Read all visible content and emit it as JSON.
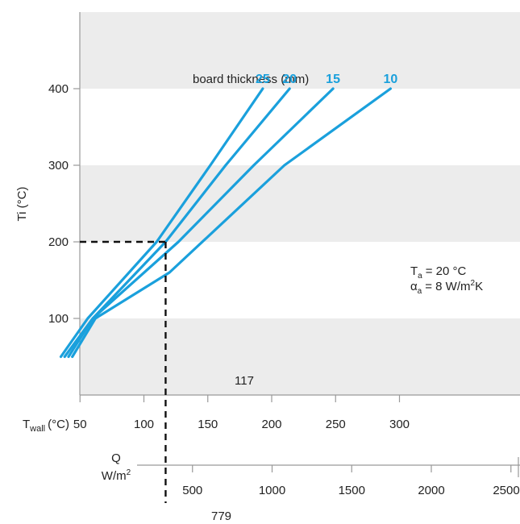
{
  "chart_data": {
    "type": "line",
    "y_axis": {
      "label": "Ti (°C)",
      "ticks": [
        100,
        200,
        300,
        400
      ],
      "range": [
        0,
        500
      ]
    },
    "x_axis": {
      "label_main": "T",
      "label_sub": "wall",
      "label_unit": "(°C)",
      "ticks": [
        50,
        100,
        150,
        200,
        250,
        300
      ],
      "range": [
        0,
        345
      ]
    },
    "secondary_axis": {
      "label_line1": "Q",
      "label_line2_main": "W/m",
      "label_line2_sup": "2",
      "ticks": [
        500,
        1000,
        1500,
        2000,
        2500
      ],
      "range": [
        0,
        2580
      ]
    },
    "legend_title": "board thickness (mm)",
    "series": [
      {
        "name": "25",
        "color": "#1aa0dc",
        "points": [
          [
            35,
            50
          ],
          [
            56,
            100
          ],
          [
            110,
            200
          ],
          [
            152,
            300
          ],
          [
            193,
            400
          ]
        ]
      },
      {
        "name": "20",
        "color": "#1aa0dc",
        "points": [
          [
            38,
            50
          ],
          [
            60,
            100
          ],
          [
            117,
            200
          ],
          [
            164,
            300
          ],
          [
            214,
            400
          ]
        ]
      },
      {
        "name": "15",
        "color": "#1aa0dc",
        "points": [
          [
            41,
            50
          ],
          [
            60,
            100
          ],
          [
            127,
            200
          ],
          [
            186,
            300
          ],
          [
            248,
            400
          ]
        ]
      },
      {
        "name": "10",
        "color": "#1aa0dc",
        "points": [
          [
            44,
            50
          ],
          [
            62,
            100
          ],
          [
            120,
            160
          ],
          [
            210,
            300
          ],
          [
            293,
            400
          ]
        ]
      }
    ],
    "reference_lines": {
      "ti": 200,
      "twall_label": "117",
      "twall": 117,
      "q_label": "779"
    },
    "conditions": {
      "ta_main": "T",
      "ta_sub": "a",
      "ta_value": "= 20 °C",
      "alpha_main": "α",
      "alpha_sub": "a",
      "alpha_value_main": "= 8 W/m",
      "alpha_value_sup": "2",
      "alpha_value_end": "K"
    },
    "grid": "alternating horizontal bands",
    "band_color": "#ececec",
    "line_color": "#1aa0dc"
  }
}
